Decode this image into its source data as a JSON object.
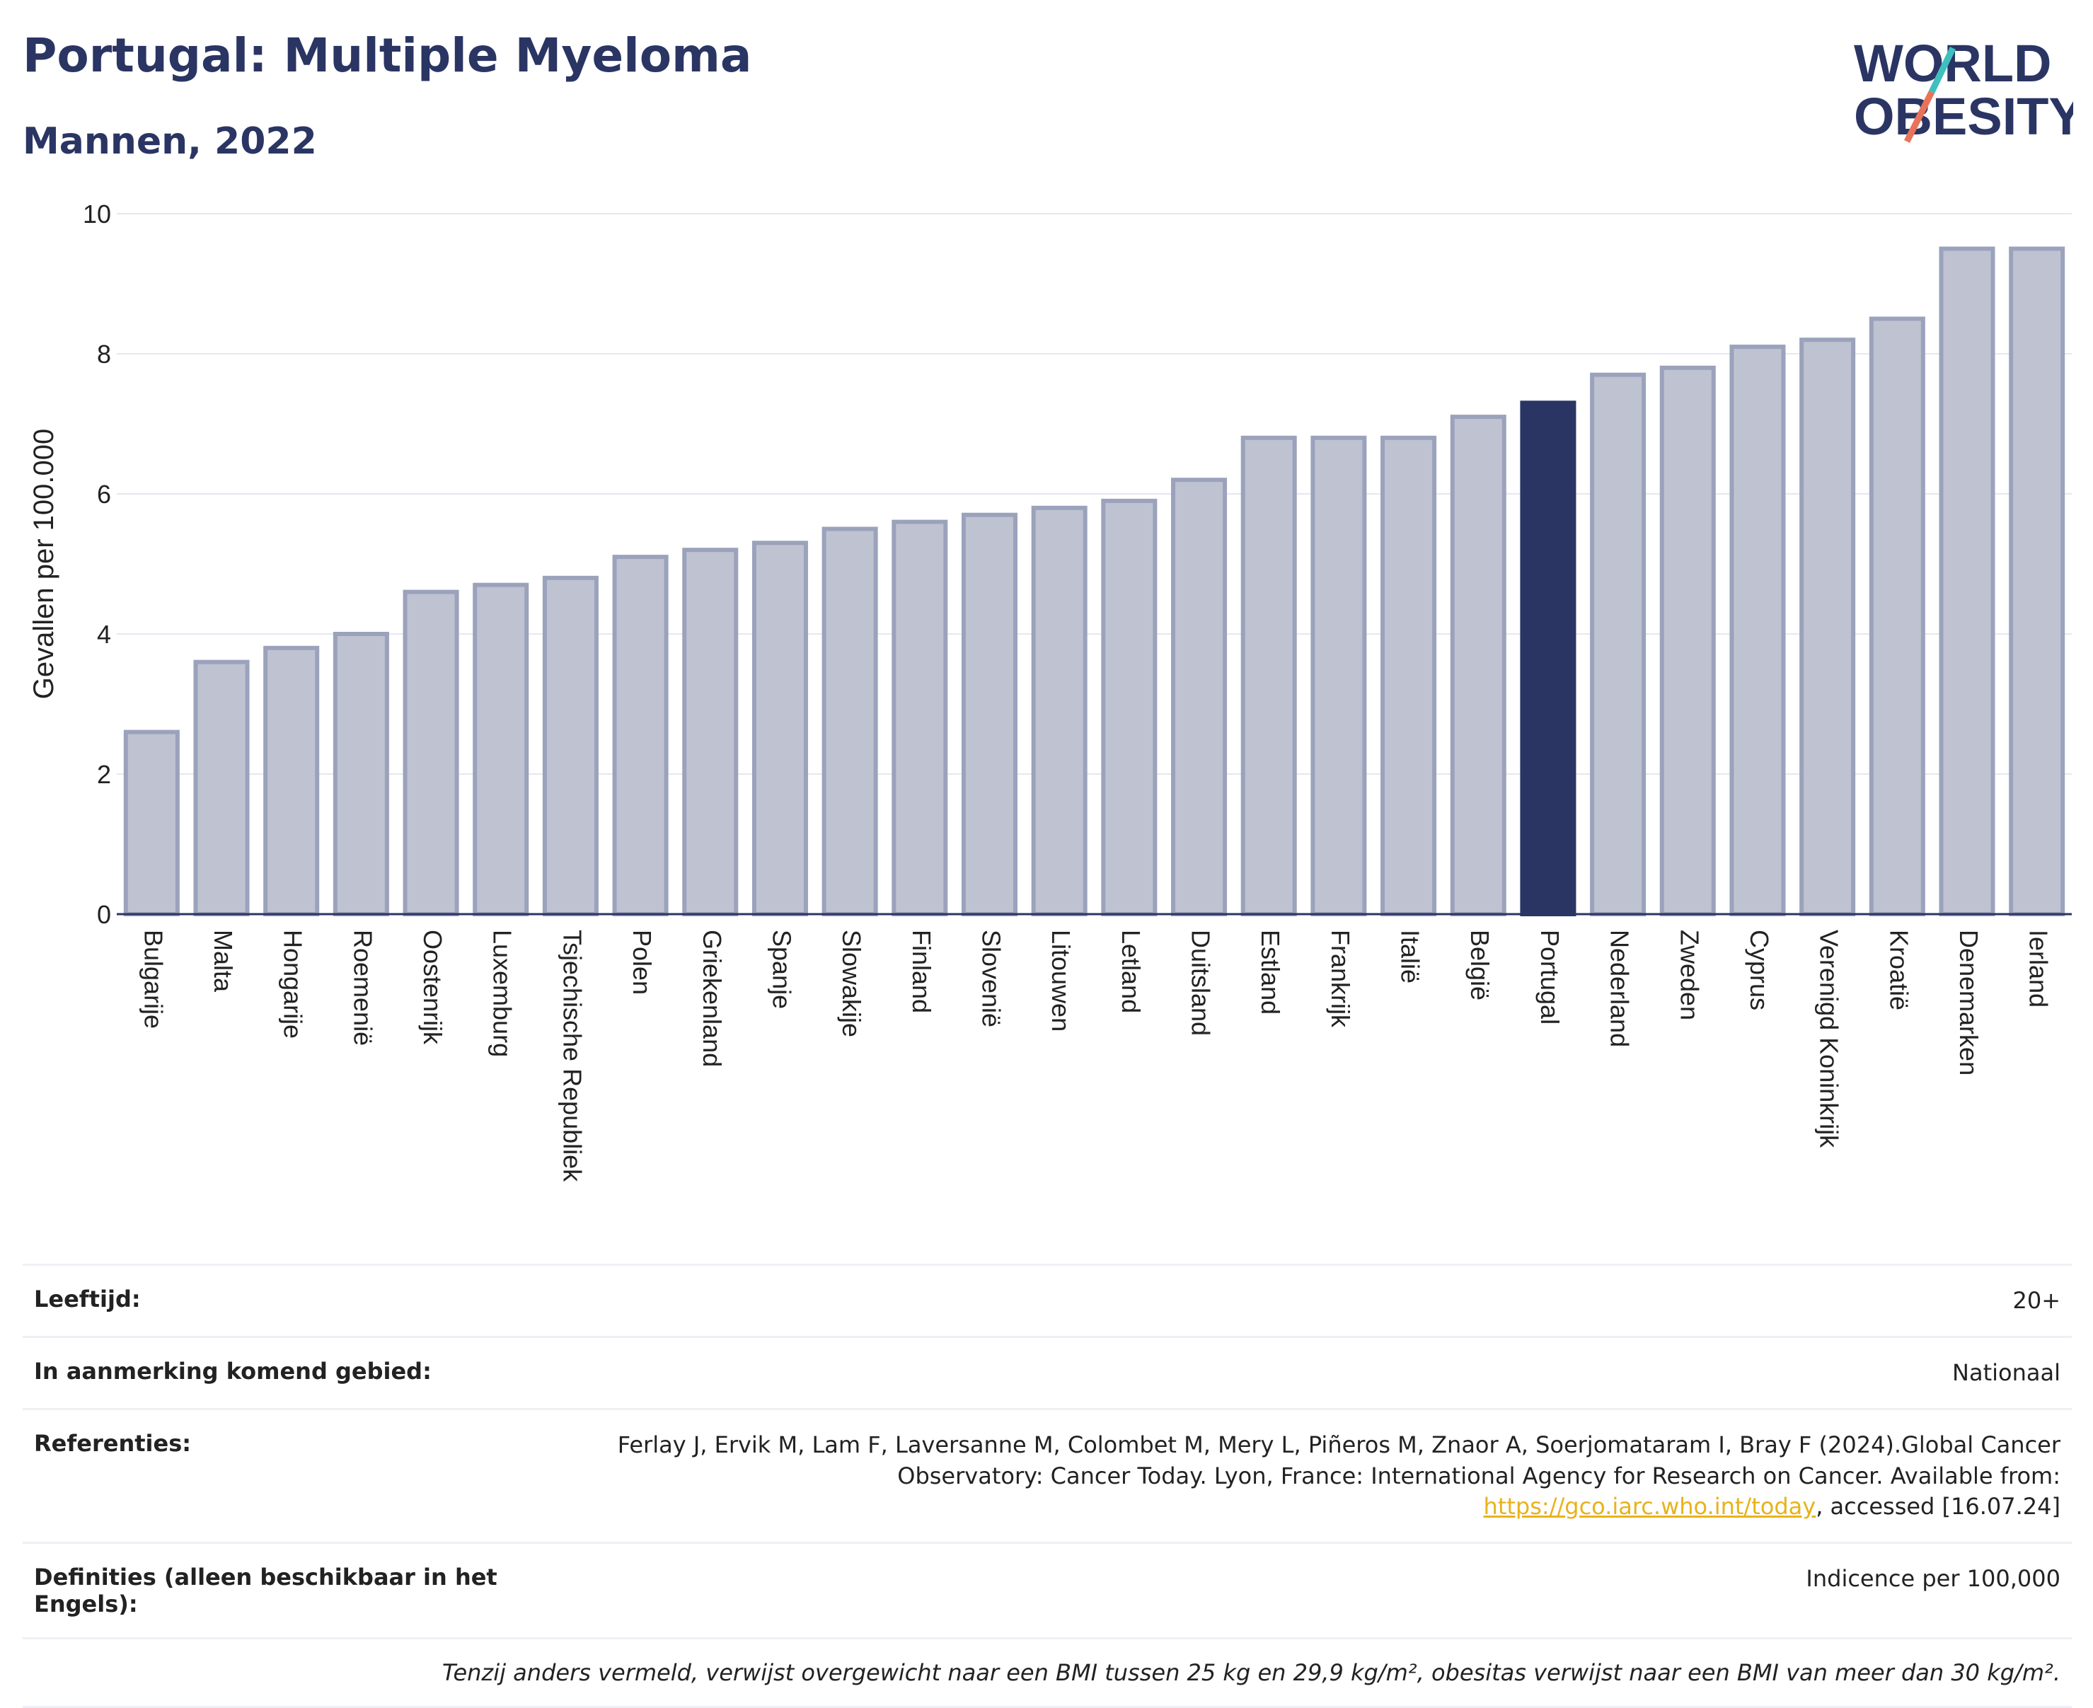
{
  "header": {
    "title": "Portugal: Multiple Myeloma",
    "subtitle": "Mannen, 2022",
    "logo_line1": "WORLD",
    "logo_line2": "OBESITY"
  },
  "chart_data": {
    "type": "bar",
    "ylabel": "Gevallen per 100.000",
    "ylim": [
      0,
      10
    ],
    "yticks": [
      0,
      2,
      4,
      6,
      8,
      10
    ],
    "grid": true,
    "highlight": "Portugal",
    "colors": {
      "bar": "#bfc3d1",
      "bar_edge": "#9ba2bb",
      "highlight": "#2a3563",
      "axis": "#2a3563"
    },
    "categories": [
      "Bulgarije",
      "Malta",
      "Hongarije",
      "Roemenië",
      "Oostenrijk",
      "Luxemburg",
      "Tsjechische Republiek",
      "Polen",
      "Griekenland",
      "Spanje",
      "Slowakije",
      "Finland",
      "Slovenië",
      "Litouwen",
      "Letland",
      "Duitsland",
      "Estland",
      "Frankrijk",
      "Italië",
      "België",
      "Portugal",
      "Nederland",
      "Zweden",
      "Cyprus",
      "Verenigd Koninkrijk",
      "Kroatië",
      "Denemarken",
      "Ierland"
    ],
    "values": [
      2.6,
      3.6,
      3.8,
      4.0,
      4.6,
      4.7,
      4.8,
      5.1,
      5.2,
      5.3,
      5.5,
      5.6,
      5.7,
      5.8,
      5.9,
      6.2,
      6.8,
      6.8,
      6.8,
      7.1,
      7.3,
      7.7,
      7.8,
      8.1,
      8.2,
      8.5,
      9.5,
      9.5
    ]
  },
  "info": {
    "age_label": "Leeftijd:",
    "age_value": "20+",
    "area_label": "In aanmerking komend gebied:",
    "area_value": "Nationaal",
    "ref_label": "Referenties:",
    "ref_text_1": "Ferlay J, Ervik M, Lam F, Laversanne M, Colombet M, Mery L, Piñeros M, Znaor A, Soerjomataram I, Bray F (2024).Global Cancer Observatory: Cancer Today. Lyon, France: International Agency for Research on Cancer. Available from: ",
    "ref_link": "https://gco.iarc.who.int/today",
    "ref_text_2": ", accessed [16.07.24]",
    "def_label": "Definities (alleen beschikbaar in het Engels):",
    "def_value": "Indicence per 100,000",
    "note": "Tenzij anders vermeld, verwijst overgewicht naar een BMI tussen 25 kg en 29,9 kg/m², obesitas verwijst naar een BMI van meer dan 30 kg/m²."
  }
}
